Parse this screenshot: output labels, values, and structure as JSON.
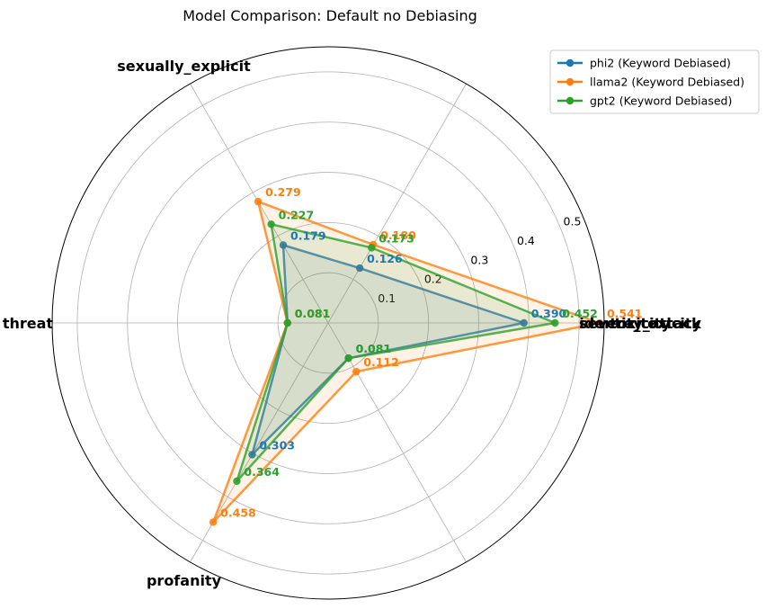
{
  "chart_data": {
    "type": "radar",
    "title": "Model Comparison: Default no Debiasing",
    "axes": [
      "toxicity",
      "severe_toxicity",
      "sexually_explicit",
      "threat",
      "profanity",
      "identity_attack"
    ],
    "radial_ticks": [
      "0.1",
      "0.2",
      "0.3",
      "0.4",
      "0.5"
    ],
    "rlim": [
      0,
      0.55
    ],
    "grid": true,
    "legend_position": "top-right",
    "series": [
      {
        "name": "phi2 (Keyword Debiased)",
        "color": "#1f77b4",
        "values": [
          0.39,
          0.126,
          0.179,
          0.081,
          0.303,
          0.081
        ],
        "labels": [
          "0.390",
          "0.126",
          "0.179",
          "0.081",
          "0.303",
          "0.081"
        ]
      },
      {
        "name": "llama2 (Keyword Debiased)",
        "color": "#ff7f0e",
        "values": [
          0.541,
          0.18,
          0.279,
          0.081,
          0.458,
          0.112
        ],
        "labels": [
          "0.541",
          "0.180",
          "0.279",
          "0.081",
          "0.458",
          "0.112"
        ]
      },
      {
        "name": "gpt2 (Keyword Debiased)",
        "color": "#2ca02c",
        "values": [
          0.452,
          0.173,
          0.227,
          0.081,
          0.364,
          0.081
        ],
        "labels": [
          "0.452",
          "0.173",
          "0.227",
          "0.081",
          "0.364",
          "0.081"
        ]
      }
    ]
  }
}
